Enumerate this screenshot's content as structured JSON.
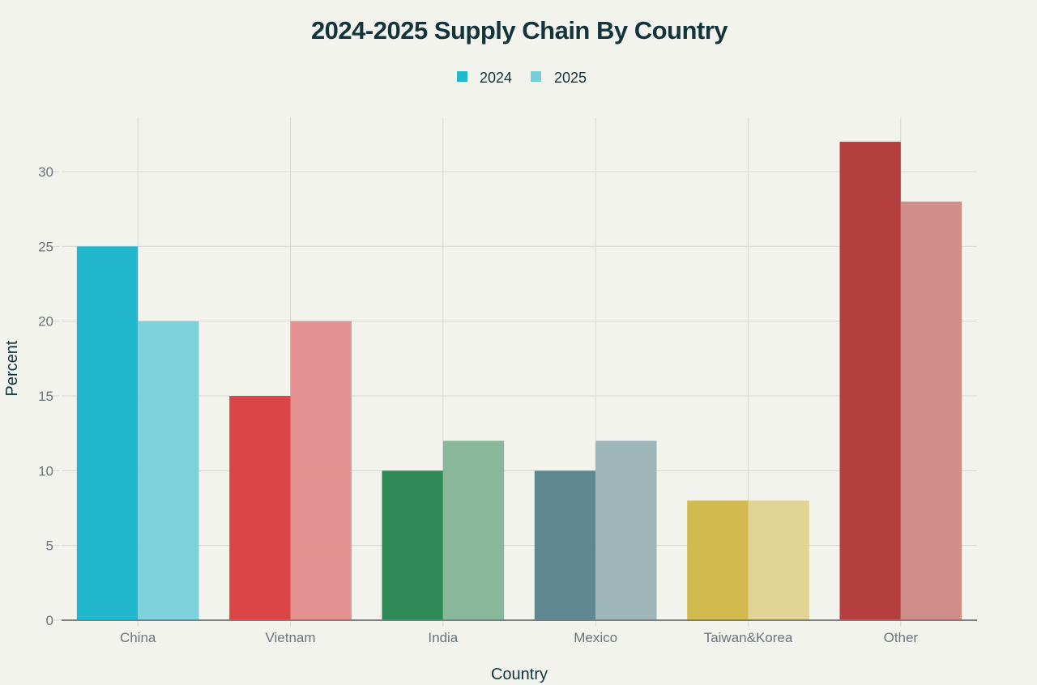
{
  "chart_data": {
    "type": "bar",
    "title": "2024-2025 Supply Chain By Country",
    "xlabel": "Country",
    "ylabel": "Percent",
    "categories": [
      "China",
      "Vietnam",
      "India",
      "Mexico",
      "Taiwan&Korea",
      "Other"
    ],
    "series": [
      {
        "name": "2024",
        "values": [
          25,
          15,
          10,
          10,
          8,
          32
        ]
      },
      {
        "name": "2025",
        "values": [
          20,
          20,
          12,
          12,
          8,
          28
        ]
      }
    ],
    "ylim": [
      0,
      33.6
    ],
    "yticks": [
      0,
      5,
      10,
      15,
      20,
      25,
      30
    ],
    "grid": true,
    "legend_position": "top-center",
    "legend_colors": {
      "2024": "#21b8ce",
      "2025": "#74cfda"
    },
    "category_colors": {
      "2024": [
        "#21b8ce",
        "#db4545",
        "#2e8a57",
        "#5e8790",
        "#d2bb4e",
        "#b43f3e"
      ],
      "2025": [
        "#74cfda",
        "#e58989",
        "#7fb391",
        "#98b1b4",
        "#e0d18c",
        "#cd8582"
      ]
    }
  }
}
